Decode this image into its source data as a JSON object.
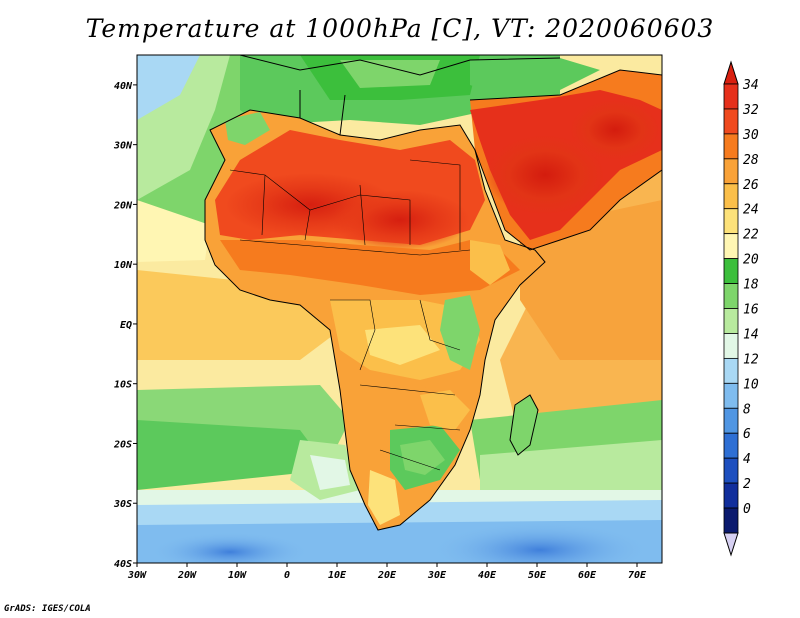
{
  "title": "Temperature at 1000hPa [C], VT: 2020060603",
  "credit": "GrADS: IGES/COLA",
  "map": {
    "lon_range": [
      -30,
      75
    ],
    "lat_range": [
      -40,
      45
    ],
    "lon_ticks": [
      "30W",
      "20W",
      "10W",
      "0",
      "10E",
      "20E",
      "30E",
      "40E",
      "50E",
      "60E",
      "70E"
    ],
    "lat_ticks": [
      "40N",
      "30N",
      "20N",
      "10N",
      "EQ",
      "10S",
      "20S",
      "30S",
      "40S"
    ]
  },
  "colorbar": {
    "labels": [
      "34",
      "32",
      "30",
      "28",
      "26",
      "24",
      "22",
      "20",
      "18",
      "16",
      "14",
      "12",
      "10",
      "8",
      "6",
      "4",
      "2",
      "0"
    ],
    "colors": [
      "#e6301b",
      "#f04a1e",
      "#f67b1e",
      "#f9a238",
      "#fbbf4a",
      "#fde27a",
      "#fff6b3",
      "#3cbf3c",
      "#7ed56b",
      "#b8ea9e",
      "#e2f7e6",
      "#a9d8f4",
      "#7fbcef",
      "#5096e3",
      "#2e6fd4",
      "#1d4fbf",
      "#112e9c",
      "#0b1a6e"
    ],
    "top_color": "#d92010",
    "bottom_color": "#d6d0f2"
  }
}
